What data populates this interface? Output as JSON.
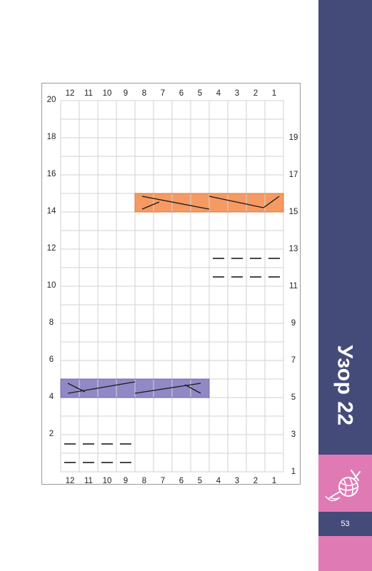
{
  "page": {
    "title": "Узор 22",
    "page_number": "53"
  },
  "colors": {
    "side_band": "#454b79",
    "accent_pink": "#e07ab5",
    "cable_orange": "#f49a62",
    "cable_purple": "#9089c6",
    "grid_line": "#d2d2d2",
    "symbol": "#1a1a1a"
  },
  "icons": {
    "logo": "yarn-ball-needles-icon"
  },
  "chart_data": {
    "type": "table",
    "columns": [
      "12",
      "11",
      "10",
      "9",
      "8",
      "7",
      "6",
      "5",
      "4",
      "3",
      "2",
      "1"
    ],
    "rows_left": [
      "20",
      "18",
      "16",
      "14",
      "12",
      "10",
      "8",
      "6",
      "4",
      "2"
    ],
    "rows_right": [
      "19",
      "17",
      "15",
      "13",
      "11",
      "9",
      "7",
      "5",
      "3",
      "1"
    ],
    "purl_cells": [
      {
        "row": 12,
        "stitches": [
          4,
          3,
          2,
          1
        ]
      },
      {
        "row": 11,
        "stitches": [
          4,
          3,
          2,
          1
        ]
      },
      {
        "row": 2,
        "stitches": [
          12,
          11,
          10,
          9
        ]
      },
      {
        "row": 1,
        "stitches": [
          12,
          11,
          10,
          9
        ]
      }
    ],
    "cables": [
      {
        "row": 15,
        "from_stitch": 8,
        "to_stitch": 1,
        "color": "orange"
      },
      {
        "row": 5,
        "from_stitch": 12,
        "to_stitch": 5,
        "color": "purple"
      }
    ]
  }
}
